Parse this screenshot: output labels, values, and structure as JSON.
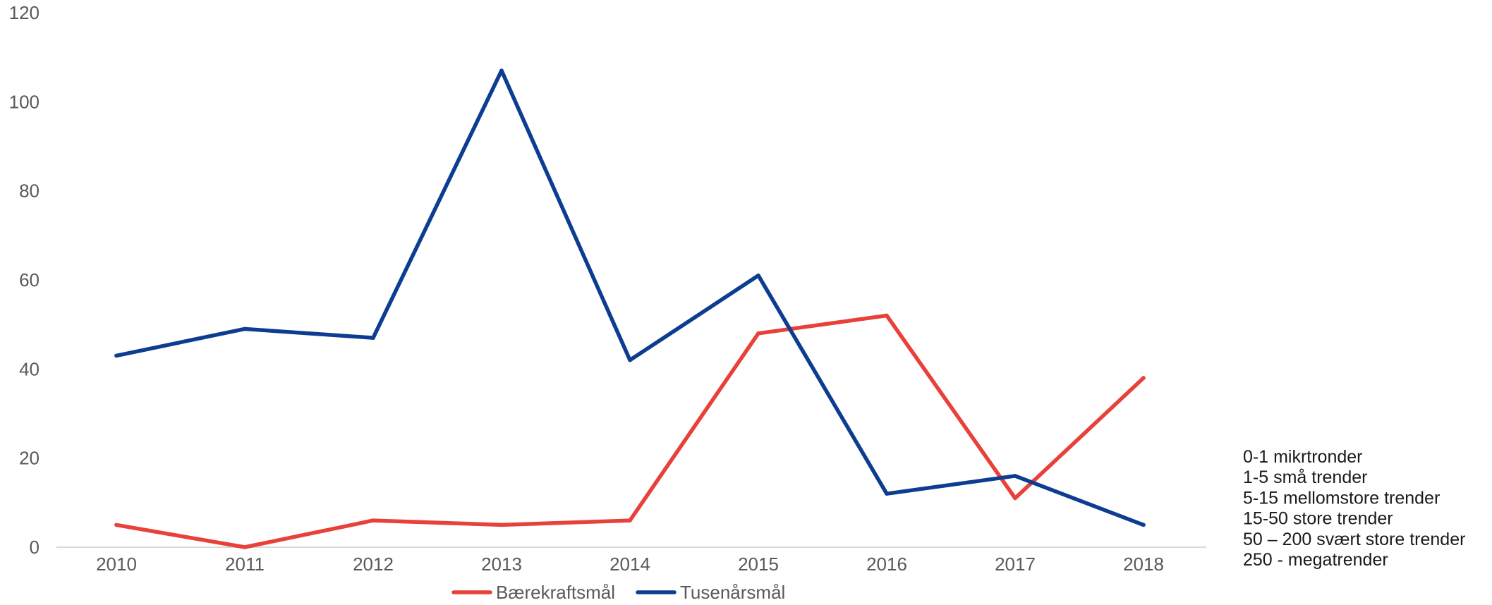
{
  "chart_data": {
    "type": "line",
    "title": "",
    "xlabel": "",
    "ylabel": "",
    "categories": [
      "2010",
      "2011",
      "2012",
      "2013",
      "2014",
      "2015",
      "2016",
      "2017",
      "2018"
    ],
    "ylim": [
      0,
      120
    ],
    "yticks": [
      "0",
      "20",
      "40",
      "60",
      "80",
      "100",
      "120"
    ],
    "grid": false,
    "legend_position": "bottom",
    "series": [
      {
        "name": "Bærekraftsmål",
        "color": "#e8413a",
        "values": [
          5,
          0,
          6,
          5,
          6,
          48,
          52,
          11,
          38
        ]
      },
      {
        "name": "Tusenårsmål",
        "color": "#0d3d91",
        "values": [
          43,
          49,
          47,
          107,
          42,
          61,
          12,
          16,
          5
        ]
      }
    ],
    "annotations": [
      "0-1 mikrtronder",
      "1-5 små trender",
      "5-15 mellomstore trender",
      "15-50 store trender",
      "50 – 200 svært store trender",
      "250 - megatrender"
    ]
  }
}
